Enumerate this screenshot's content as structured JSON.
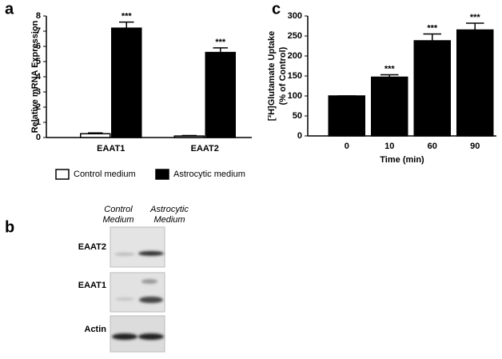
{
  "panel_labels": [
    "a",
    "b",
    "c"
  ],
  "chart_data": [
    {
      "type": "bar",
      "ylabel": "Relative mRNA Expression",
      "categories": [
        "EAAT1",
        "EAAT2"
      ],
      "series": [
        {
          "name": "Control medium",
          "color": "#ffffff",
          "values": [
            0.25,
            0.1
          ],
          "errors": [
            0.05,
            0.03
          ],
          "significance": [
            null,
            null
          ]
        },
        {
          "name": "Astrocytic medium",
          "color": "#000000",
          "values": [
            7.2,
            5.6
          ],
          "errors": [
            0.4,
            0.3
          ],
          "significance": [
            "***",
            "***"
          ]
        }
      ],
      "ylim": [
        0,
        8
      ],
      "yticks": [
        0,
        1,
        2,
        3,
        4,
        5,
        6,
        7,
        8
      ],
      "legend": "bottom"
    },
    {
      "type": "bar",
      "ylabel": [
        "[³H]Glutamate Uptake",
        "(% of Control)"
      ],
      "xlabel": "Time (min)",
      "categories": [
        "0",
        "10",
        "60",
        "90"
      ],
      "values": [
        100,
        147,
        238,
        265
      ],
      "errors": [
        0,
        6,
        17,
        17
      ],
      "significance": [
        null,
        "***",
        "***",
        "***"
      ],
      "color": "#000000",
      "ylim": [
        0,
        300
      ],
      "yticks": [
        0,
        50,
        100,
        150,
        200,
        250,
        300
      ]
    }
  ],
  "blot": {
    "columns": [
      [
        "Control",
        "Medium"
      ],
      [
        "Astrocytic",
        "Medium"
      ]
    ],
    "rows": [
      "EAAT2",
      "EAAT1",
      "Actin"
    ]
  }
}
